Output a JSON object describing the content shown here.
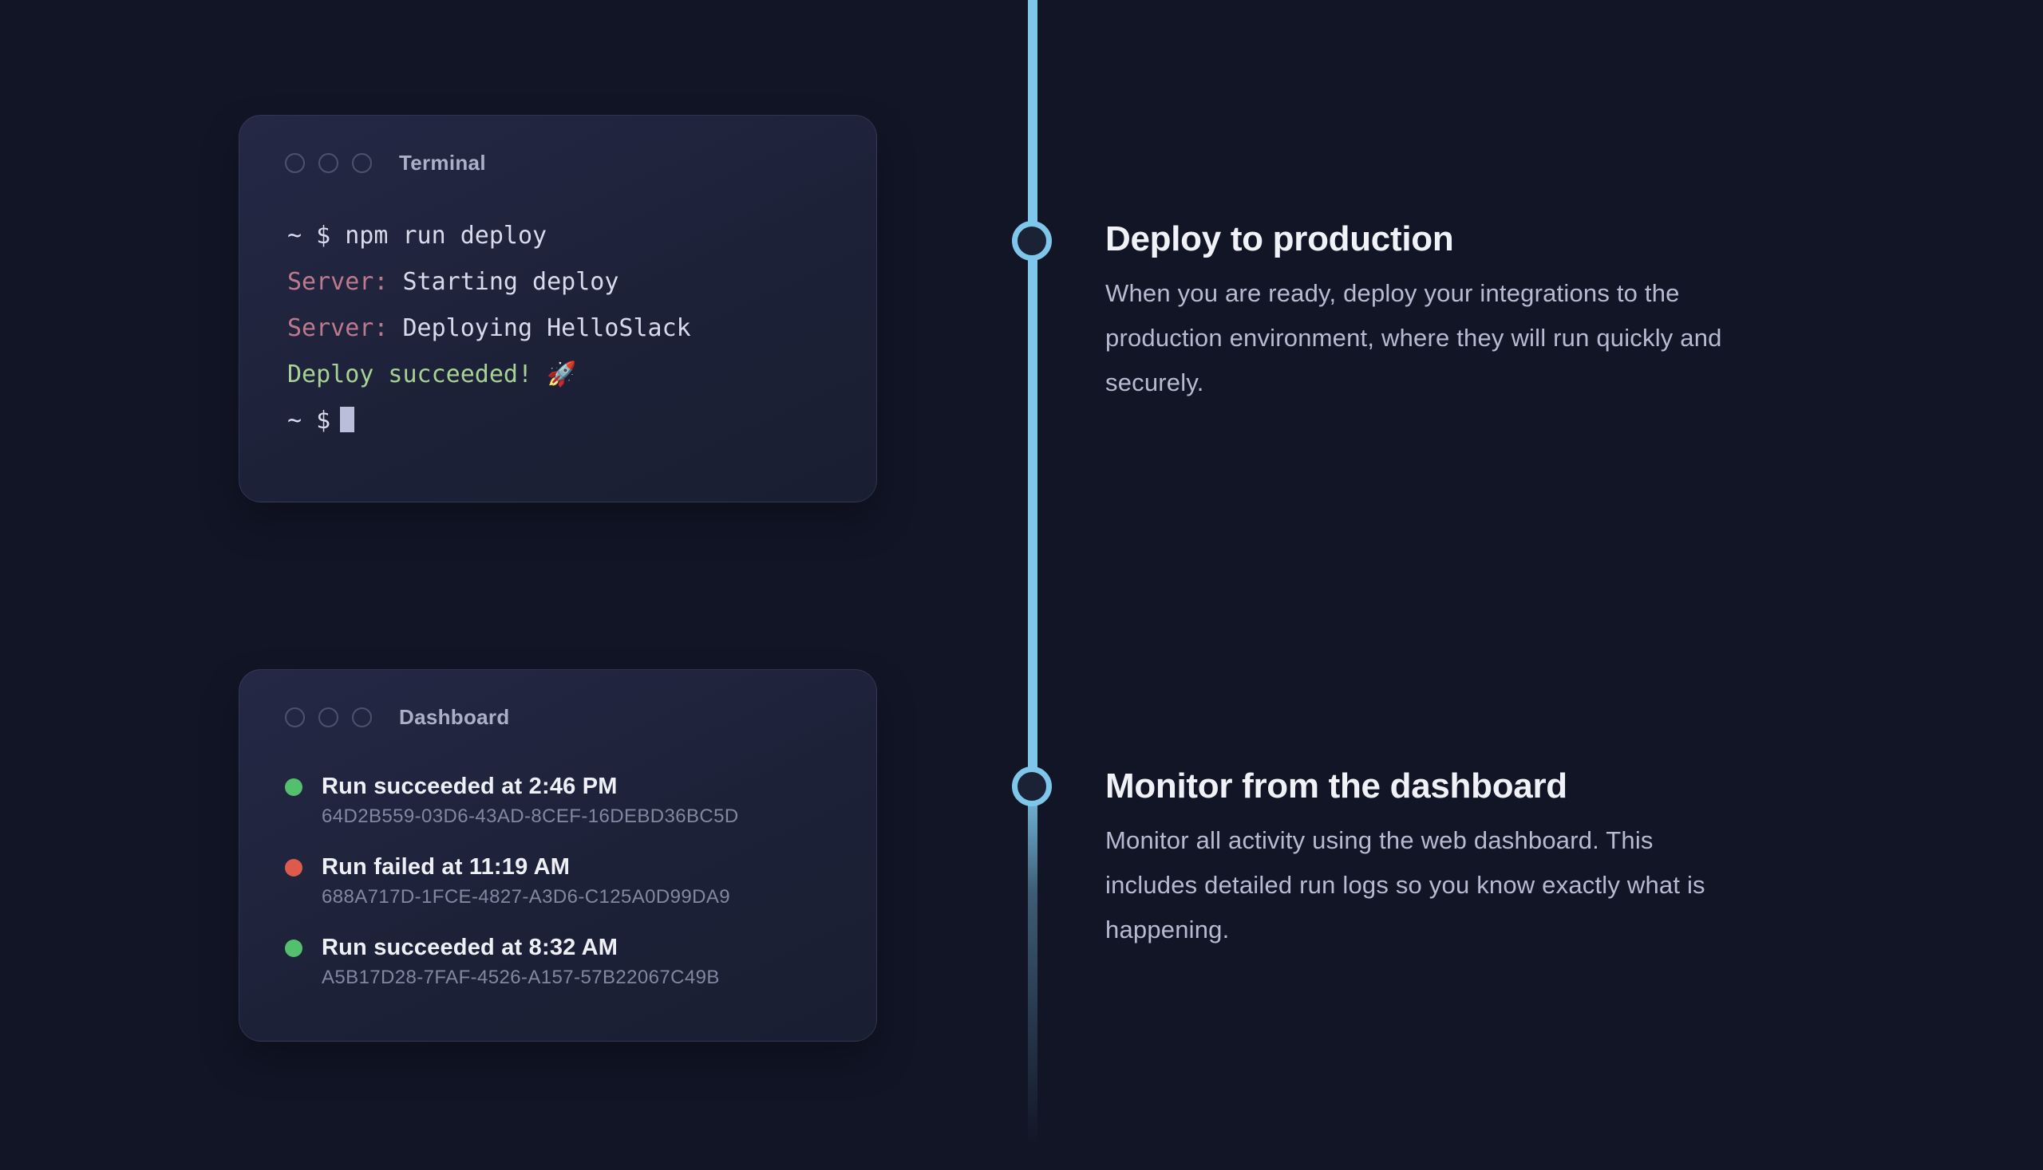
{
  "terminal": {
    "title": "Terminal",
    "line1": "~ $ npm run deploy",
    "line2_label": "Server:",
    "line2_text": " Starting deploy",
    "line3_label": "Server:",
    "line3_text": " Deploying HelloSlack",
    "line4": "Deploy succeeded! 🚀",
    "line5_prompt": "~ $"
  },
  "dashboard": {
    "title": "Dashboard",
    "runs": [
      {
        "status": "success",
        "title": "Run succeeded at 2:46 PM",
        "id": "64D2B559-03D6-43AD-8CEF-16DEBD36BC5D"
      },
      {
        "status": "failed",
        "title": "Run failed at 11:19 AM",
        "id": "688A717D-1FCE-4827-A3D6-C125A0D99DA9"
      },
      {
        "status": "success",
        "title": "Run succeeded at 8:32 AM",
        "id": "A5B17D28-7FAF-4526-A157-57B22067C49B"
      }
    ]
  },
  "sections": [
    {
      "heading": "Deploy to production",
      "body": "When you are ready, deploy your integrations to the\nproduction environment, where they will run quickly and\nsecurely."
    },
    {
      "heading": "Monitor from the dashboard",
      "body": "Monitor all activity using the web dashboard. This\nincludes detailed run logs so you know exactly what is\nhappening."
    }
  ],
  "colors": {
    "page_background": "#121526",
    "timeline_blue": "#7ec7ea",
    "success_green": "#53c06d",
    "error_red": "#dd5a4c",
    "terminal_success_green": "#a7d293",
    "terminal_label_pink": "#bd7a8f",
    "card_background": "#1d2138"
  }
}
